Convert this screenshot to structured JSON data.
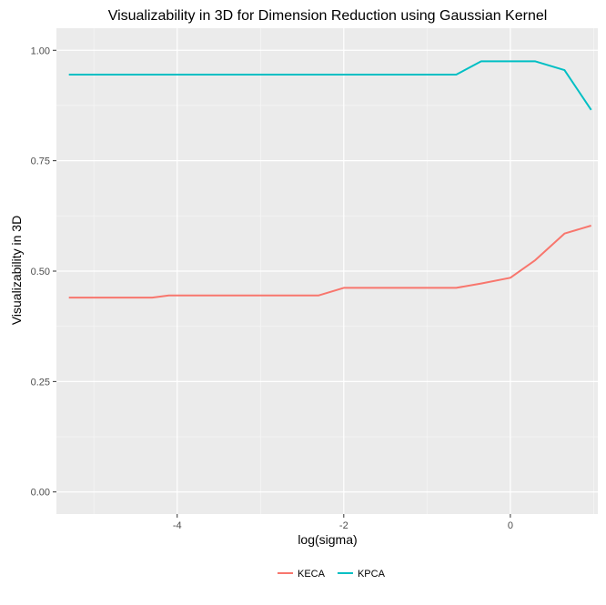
{
  "chart_data": {
    "type": "line",
    "title": "Visualizability in 3D for Dimension Reduction using Gaussian Kernel",
    "xlabel": "log(sigma)",
    "ylabel": "Visualizability in 3D",
    "xlim": [
      -5.45,
      1.05
    ],
    "ylim": [
      -0.05,
      1.05
    ],
    "xticks": [
      -4,
      -2,
      0
    ],
    "xtick_labels": [
      "-4",
      "-2",
      "0"
    ],
    "yticks": [
      0.0,
      0.25,
      0.5,
      0.75,
      1.0
    ],
    "ytick_labels": [
      "0.00",
      "0.25",
      "0.50",
      "0.75",
      "1.00"
    ],
    "grid": true,
    "legend_position": "bottom",
    "series": [
      {
        "name": "KECA",
        "color": "#F8766D",
        "x": [
          -5.3,
          -4.3,
          -4.1,
          -2.3,
          -2.0,
          -0.65,
          -0.35,
          0.0,
          0.3,
          0.65,
          0.97
        ],
        "y": [
          0.44,
          0.44,
          0.445,
          0.445,
          0.462,
          0.462,
          0.472,
          0.485,
          0.525,
          0.585,
          0.603
        ]
      },
      {
        "name": "KPCA",
        "color": "#00BFC4",
        "x": [
          -5.3,
          -0.65,
          -0.35,
          0.0,
          0.3,
          0.65,
          0.97
        ],
        "y": [
          0.945,
          0.945,
          0.975,
          0.975,
          0.975,
          0.955,
          0.865
        ]
      }
    ]
  }
}
